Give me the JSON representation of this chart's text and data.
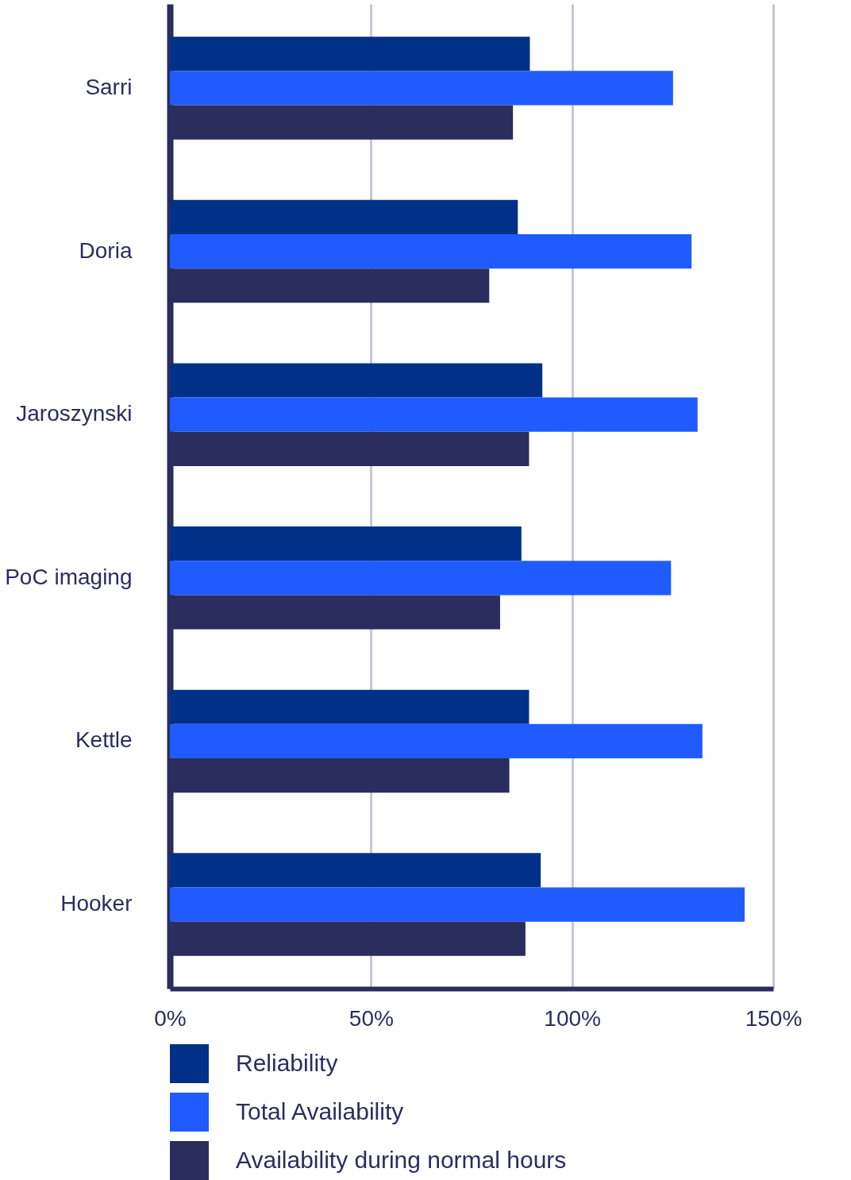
{
  "chart_data": {
    "type": "bar",
    "orientation": "horizontal",
    "categories": [
      "Sarri",
      "Doria",
      "Jaroszynski",
      "PoC imaging",
      "Kettle",
      "Hooker"
    ],
    "series": [
      {
        "name": "Reliability",
        "color": "#003087",
        "values": [
          89.5,
          86.5,
          92.6,
          87.4,
          89.3,
          92.2
        ]
      },
      {
        "name": "Total Availability",
        "color": "#1f5bff",
        "values": [
          125.1,
          129.7,
          131.2,
          124.6,
          132.4,
          142.9
        ]
      },
      {
        "name": "Availability during normal hours",
        "color": "#2b2d5e",
        "values": [
          85.3,
          79.4,
          89.3,
          82.1,
          84.4,
          88.4
        ]
      }
    ],
    "xlim": [
      0,
      150
    ],
    "xticks": [
      {
        "value": 0,
        "label": "0%"
      },
      {
        "value": 50,
        "label": "50%"
      },
      {
        "value": 100,
        "label": "100%"
      },
      {
        "value": 150,
        "label": "150%"
      }
    ],
    "grid": "x",
    "legend": "bottom left"
  }
}
